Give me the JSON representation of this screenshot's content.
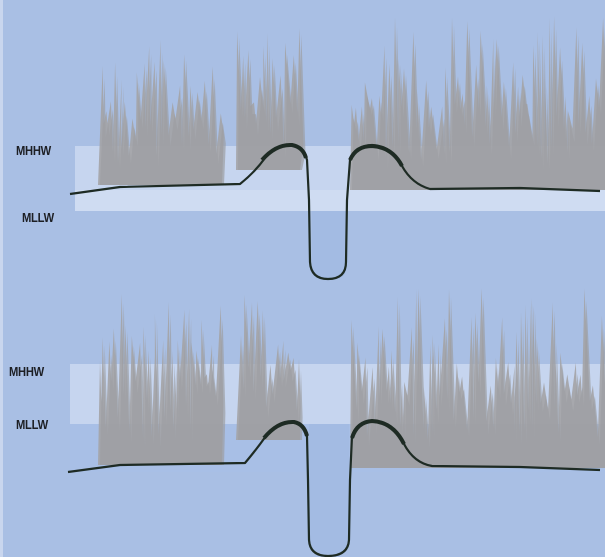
{
  "panels": [
    {
      "mhhw_label": "MHHW",
      "mllw_label": "MLLW"
    },
    {
      "mhhw_label": "MHHW",
      "mllw_label": "MLLW"
    }
  ],
  "colors": {
    "background": "#a9bfe4",
    "tidal_band": "#c5d4ee",
    "channel_water": "#a6bde3",
    "grass": "#a4a4a7",
    "ground_line": "#1e2b24"
  },
  "icons": [
    "marsh-grass-icon"
  ]
}
